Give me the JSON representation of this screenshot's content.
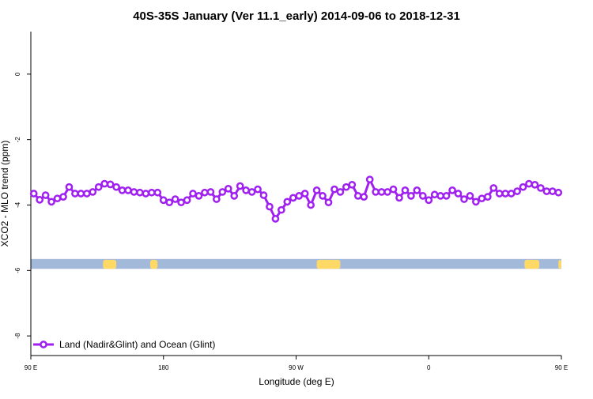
{
  "chart_data": {
    "type": "line",
    "title": "40S-35S January (Ver 11.1_early)   2014-09-06 to 2018-12-31",
    "xlabel": "Longitude (deg E)",
    "ylabel": "XCO2 - MLO trend (ppm)",
    "xlim": [
      90,
      450
    ],
    "ylim": [
      -8.6,
      1.3
    ],
    "x_ticks": [
      {
        "value": 90,
        "label": "90 E"
      },
      {
        "value": 180,
        "label": "180"
      },
      {
        "value": 270,
        "label": "90 W"
      },
      {
        "value": 360,
        "label": "0"
      },
      {
        "value": 450,
        "label": "90 E"
      }
    ],
    "y_ticks": [
      {
        "value": 0,
        "label": "0"
      },
      {
        "value": -2,
        "label": "-2"
      },
      {
        "value": -4,
        "label": "-4"
      },
      {
        "value": -6,
        "label": "-6"
      },
      {
        "value": -8,
        "label": "-8"
      }
    ],
    "grid": false,
    "legend_position": "bottom-left",
    "colors": {
      "series": "#a020f0",
      "land": "#ffd966",
      "ocean": "#a3b9d9"
    },
    "land_ocean_strip": {
      "y_range": [
        -5.95,
        -5.65
      ],
      "land_segments": [
        [
          139,
          148
        ],
        [
          171,
          176
        ],
        [
          284,
          300
        ],
        [
          425,
          435
        ],
        [
          448,
          450
        ]
      ]
    },
    "series": [
      {
        "name": "Land (Nadir&Glint) and Ocean (Glint)",
        "x": [
          92,
          96,
          100,
          104,
          108,
          112,
          116,
          120,
          124,
          128,
          132,
          136,
          140,
          144,
          148,
          152,
          156,
          160,
          164,
          168,
          172,
          176,
          180,
          184,
          188,
          192,
          196,
          200,
          204,
          208,
          212,
          216,
          220,
          224,
          228,
          232,
          236,
          240,
          244,
          248,
          252,
          256,
          260,
          264,
          268,
          272,
          276,
          280,
          284,
          288,
          292,
          296,
          300,
          304,
          308,
          312,
          316,
          320,
          324,
          328,
          332,
          336,
          340,
          344,
          348,
          352,
          356,
          360,
          364,
          368,
          372,
          376,
          380,
          384,
          388,
          392,
          396,
          400,
          404,
          408,
          412,
          416,
          420,
          424,
          428,
          432,
          436,
          440,
          444,
          448
        ],
        "values": [
          -3.65,
          -3.84,
          -3.7,
          -3.9,
          -3.8,
          -3.75,
          -3.45,
          -3.65,
          -3.65,
          -3.65,
          -3.6,
          -3.45,
          -3.35,
          -3.37,
          -3.45,
          -3.55,
          -3.55,
          -3.6,
          -3.62,
          -3.65,
          -3.62,
          -3.62,
          -3.85,
          -3.92,
          -3.82,
          -3.92,
          -3.85,
          -3.65,
          -3.72,
          -3.62,
          -3.6,
          -3.82,
          -3.6,
          -3.5,
          -3.72,
          -3.42,
          -3.55,
          -3.6,
          -3.52,
          -3.7,
          -4.05,
          -4.42,
          -4.15,
          -3.9,
          -3.78,
          -3.72,
          -3.65,
          -4.0,
          -3.55,
          -3.72,
          -3.92,
          -3.52,
          -3.6,
          -3.45,
          -3.38,
          -3.72,
          -3.75,
          -3.22,
          -3.6,
          -3.6,
          -3.6,
          -3.52,
          -3.78,
          -3.55,
          -3.72,
          -3.55,
          -3.72,
          -3.85,
          -3.68,
          -3.72,
          -3.72,
          -3.55,
          -3.65,
          -3.82,
          -3.72,
          -3.9,
          -3.8,
          -3.75,
          -3.48,
          -3.65,
          -3.65,
          -3.65,
          -3.58,
          -3.45,
          -3.35,
          -3.38,
          -3.48,
          -3.58,
          -3.58,
          -3.62
        ]
      }
    ]
  }
}
